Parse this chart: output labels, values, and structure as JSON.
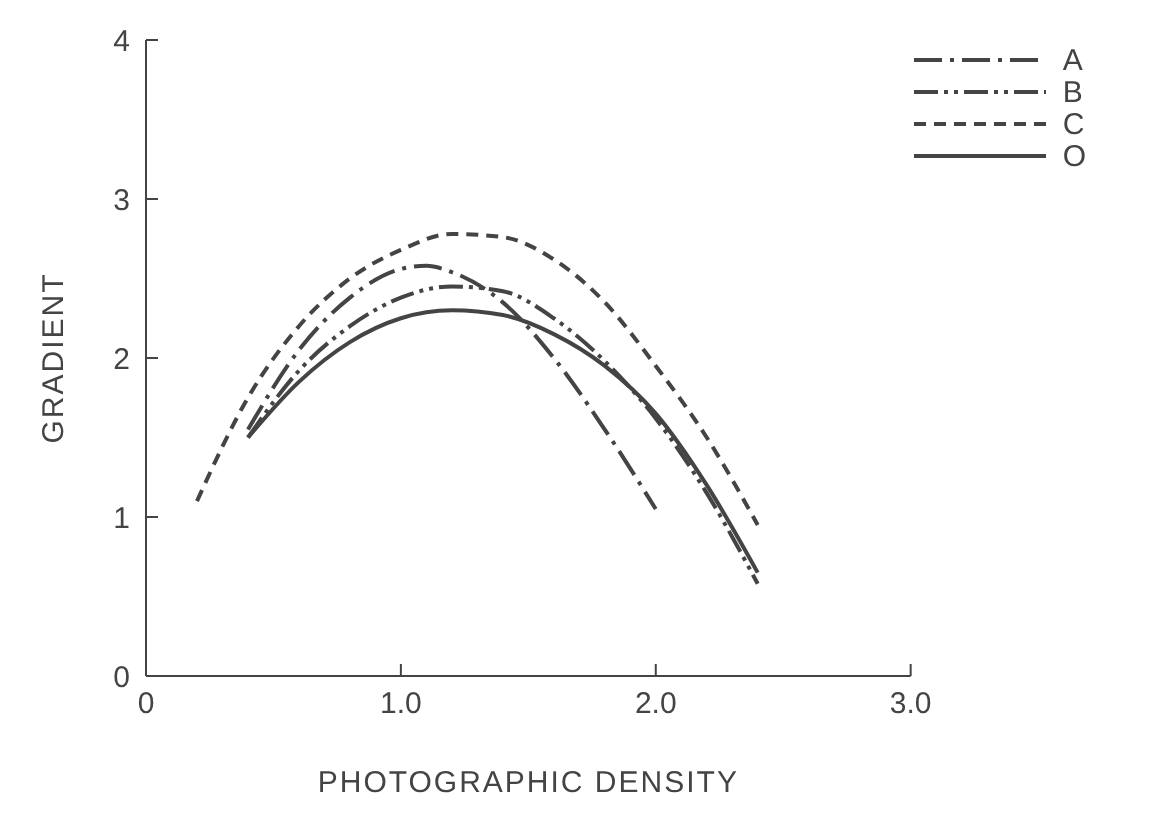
{
  "chart_data": {
    "type": "line",
    "xlabel": "PHOTOGRAPHIC   DENSITY",
    "ylabel": "GRADIENT",
    "xlim": [
      0,
      3
    ],
    "ylim": [
      0,
      4
    ],
    "xticks": [
      0,
      {
        "value": 1,
        "label": "1.0"
      },
      {
        "value": 2,
        "label": "2.0"
      },
      {
        "value": 3,
        "label": "3.0"
      }
    ],
    "yticks": [
      0,
      1,
      2,
      3,
      4
    ],
    "grid": false,
    "legend": "top right",
    "marker": "none",
    "series": [
      {
        "name": "A",
        "color": "#444444",
        "line_style": "dashdot",
        "x": [
          0.4,
          0.6,
          0.8,
          1.0,
          1.1,
          1.2,
          1.4,
          1.6,
          1.8,
          2.0
        ],
        "values": [
          1.55,
          2.05,
          2.38,
          2.56,
          2.58,
          2.54,
          2.35,
          2.0,
          1.55,
          1.05
        ]
      },
      {
        "name": "B",
        "color": "#444444",
        "line_style": "dashdotdot",
        "x": [
          0.4,
          0.6,
          0.8,
          1.0,
          1.2,
          1.4,
          1.6,
          1.8,
          2.0,
          2.2,
          2.4
        ],
        "values": [
          1.5,
          1.92,
          2.2,
          2.38,
          2.45,
          2.42,
          2.25,
          1.98,
          1.62,
          1.15,
          0.58
        ]
      },
      {
        "name": "C",
        "color": "#444444",
        "line_style": "dashed",
        "x": [
          0.2,
          0.4,
          0.6,
          0.8,
          1.0,
          1.2,
          1.4,
          1.6,
          1.8,
          2.0,
          2.2,
          2.4
        ],
        "values": [
          1.1,
          1.75,
          2.2,
          2.5,
          2.68,
          2.78,
          2.76,
          2.62,
          2.35,
          1.95,
          1.5,
          0.95
        ]
      },
      {
        "name": "O",
        "color": "#444444",
        "line_style": "solid",
        "x": [
          0.4,
          0.6,
          0.8,
          1.0,
          1.2,
          1.4,
          1.6,
          1.8,
          2.0,
          2.2,
          2.4
        ],
        "values": [
          1.5,
          1.85,
          2.1,
          2.25,
          2.3,
          2.27,
          2.15,
          1.95,
          1.65,
          1.2,
          0.65
        ]
      }
    ]
  }
}
